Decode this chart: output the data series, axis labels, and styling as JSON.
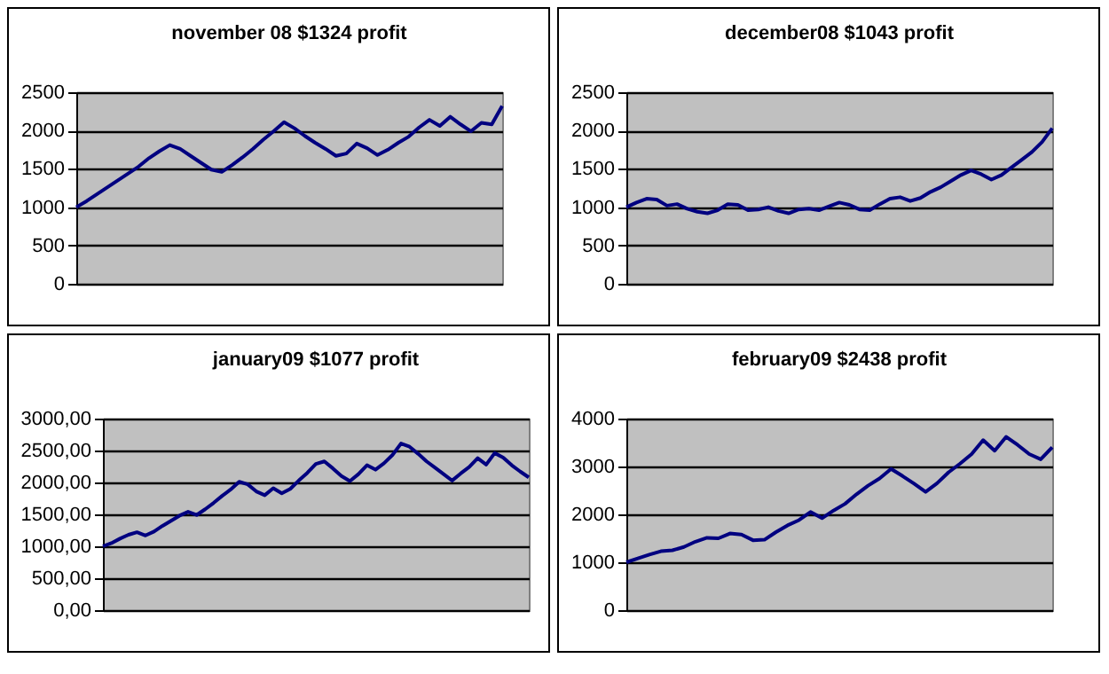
{
  "chart_data": [
    {
      "type": "line",
      "title": "november 08 $1324 profit",
      "color": "#000080",
      "grid": "y",
      "tick_labels": "y",
      "ylim": [
        0,
        2500
      ],
      "yticks": [
        0,
        500,
        1000,
        1500,
        2000,
        2500
      ],
      "categories": [
        null,
        null,
        null,
        null,
        null,
        null,
        null,
        null,
        null,
        null,
        null,
        null,
        null,
        null,
        null,
        null,
        null,
        null,
        null,
        null,
        null,
        null,
        null,
        null,
        null,
        null,
        null,
        null,
        null,
        null,
        null,
        null,
        null,
        null,
        null,
        null,
        null,
        null,
        null,
        null,
        null,
        null
      ],
      "values": [
        1000,
        1080,
        1170,
        1260,
        1350,
        1440,
        1530,
        1640,
        1730,
        1810,
        1760,
        1670,
        1580,
        1490,
        1460,
        1550,
        1650,
        1760,
        1880,
        1990,
        2110,
        2030,
        1930,
        1840,
        1760,
        1670,
        1700,
        1830,
        1770,
        1680,
        1750,
        1840,
        1920,
        2040,
        2140,
        2060,
        2180,
        2080,
        1990,
        2100,
        2080,
        2320
      ]
    },
    {
      "type": "line",
      "title": "december08 $1043 profit",
      "color": "#000080",
      "grid": "y",
      "tick_labels": "y",
      "ylim": [
        0,
        2500
      ],
      "yticks": [
        0,
        500,
        1000,
        1500,
        2000,
        2500
      ],
      "categories": [
        null,
        null,
        null,
        null,
        null,
        null,
        null,
        null,
        null,
        null,
        null,
        null,
        null,
        null,
        null,
        null,
        null,
        null,
        null,
        null,
        null,
        null,
        null,
        null,
        null,
        null,
        null,
        null,
        null,
        null,
        null,
        null,
        null,
        null,
        null,
        null,
        null,
        null,
        null,
        null,
        null,
        null,
        null
      ],
      "values": [
        1000,
        1060,
        1110,
        1100,
        1020,
        1040,
        980,
        940,
        920,
        960,
        1040,
        1030,
        960,
        970,
        1000,
        950,
        920,
        970,
        980,
        960,
        1010,
        1060,
        1030,
        970,
        960,
        1040,
        1110,
        1130,
        1080,
        1120,
        1200,
        1260,
        1340,
        1420,
        1480,
        1430,
        1360,
        1420,
        1520,
        1620,
        1720,
        1850,
        2030
      ]
    },
    {
      "type": "line",
      "title": "january09 $1077 profit",
      "color": "#000080",
      "grid": "y",
      "tick_labels": "y",
      "ylim": [
        0,
        3000
      ],
      "yticks": [
        {
          "value": 0,
          "label": "0,00"
        },
        {
          "value": 500,
          "label": "500,00"
        },
        {
          "value": 1000,
          "label": "1000,00"
        },
        {
          "value": 1500,
          "label": "1500,00"
        },
        {
          "value": 2000,
          "label": "2000,00"
        },
        {
          "value": 2500,
          "label": "2500,00"
        },
        {
          "value": 3000,
          "label": "3000,00"
        }
      ],
      "categories": [
        null,
        null,
        null,
        null,
        null,
        null,
        null,
        null,
        null,
        null,
        null,
        null,
        null,
        null,
        null,
        null,
        null,
        null,
        null,
        null,
        null,
        null,
        null,
        null,
        null,
        null,
        null,
        null,
        null,
        null,
        null,
        null,
        null,
        null,
        null,
        null,
        null,
        null,
        null,
        null,
        null,
        null,
        null,
        null,
        null,
        null,
        null,
        null,
        null,
        null,
        null
      ],
      "values": [
        1000,
        1050,
        1120,
        1180,
        1220,
        1170,
        1230,
        1320,
        1400,
        1480,
        1540,
        1490,
        1580,
        1680,
        1790,
        1890,
        2010,
        1970,
        1860,
        1800,
        1910,
        1830,
        1900,
        2030,
        2150,
        2290,
        2330,
        2220,
        2100,
        2020,
        2130,
        2270,
        2200,
        2300,
        2430,
        2610,
        2560,
        2450,
        2330,
        2230,
        2130,
        2030,
        2140,
        2240,
        2380,
        2280,
        2460,
        2390,
        2270,
        2170,
        2080
      ]
    },
    {
      "type": "line",
      "title": "february09 $2438 profit",
      "color": "#000080",
      "grid": "y",
      "tick_labels": "y",
      "ylim": [
        0,
        4000
      ],
      "yticks": [
        0,
        1000,
        2000,
        3000,
        4000
      ],
      "categories": [
        null,
        null,
        null,
        null,
        null,
        null,
        null,
        null,
        null,
        null,
        null,
        null,
        null,
        null,
        null,
        null,
        null,
        null,
        null,
        null,
        null,
        null,
        null,
        null,
        null,
        null,
        null,
        null,
        null,
        null,
        null,
        null,
        null,
        null,
        null,
        null,
        null,
        null
      ],
      "values": [
        1000,
        1080,
        1160,
        1230,
        1250,
        1320,
        1430,
        1510,
        1500,
        1600,
        1580,
        1460,
        1470,
        1630,
        1770,
        1880,
        2050,
        1920,
        2080,
        2220,
        2420,
        2600,
        2750,
        2950,
        2800,
        2640,
        2470,
        2650,
        2880,
        3060,
        3260,
        3550,
        3330,
        3620,
        3450,
        3260,
        3150,
        3400
      ]
    }
  ]
}
